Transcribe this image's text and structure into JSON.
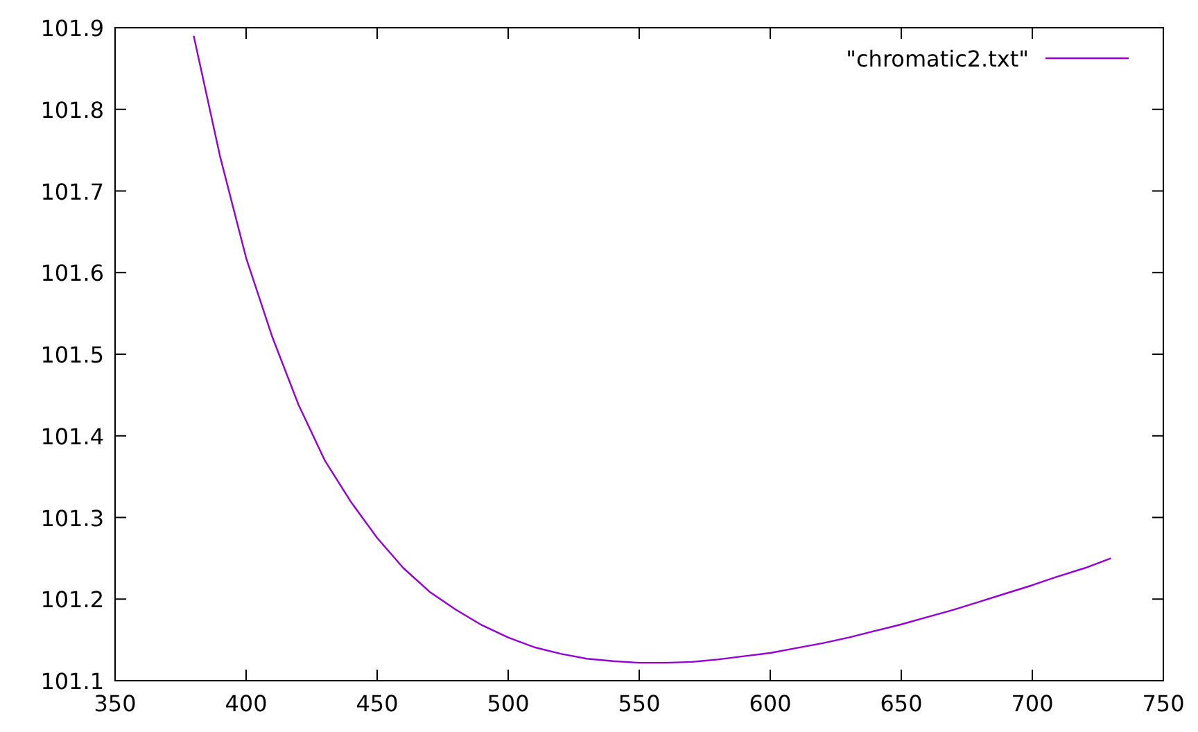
{
  "chart_data": {
    "type": "line",
    "legend": "top right",
    "marker": "none",
    "line_style": "solid",
    "grid": false,
    "x": [
      380,
      390,
      400,
      410,
      420,
      430,
      440,
      450,
      460,
      470,
      480,
      490,
      500,
      510,
      520,
      530,
      540,
      550,
      560,
      570,
      580,
      590,
      600,
      610,
      620,
      630,
      640,
      650,
      660,
      670,
      680,
      690,
      700,
      710,
      720,
      730
    ],
    "series": [
      {
        "name": "\"chromatic2.txt\"",
        "color": "#9400d3",
        "values": [
          101.89,
          101.743,
          101.618,
          101.521,
          101.438,
          101.37,
          101.319,
          101.275,
          101.238,
          101.209,
          101.187,
          101.168,
          101.153,
          101.141,
          101.133,
          101.127,
          101.124,
          101.122,
          101.122,
          101.123,
          101.126,
          101.13,
          101.134,
          101.14,
          101.146,
          101.153,
          101.161,
          101.169,
          101.178,
          101.187,
          101.197,
          101.207,
          101.217,
          101.228,
          101.238,
          101.25
        ]
      }
    ],
    "xlim": [
      350,
      750
    ],
    "xticks": [
      350,
      400,
      450,
      500,
      550,
      600,
      650,
      700,
      750
    ],
    "ylim": [
      101.1,
      101.9
    ],
    "yticks": [
      {
        "value": 101.1,
        "label": "101.1"
      },
      {
        "value": 101.2,
        "label": "101.2"
      },
      {
        "value": 101.3,
        "label": "101.3"
      },
      {
        "value": 101.4,
        "label": "101.4"
      },
      {
        "value": 101.5,
        "label": "101.5"
      },
      {
        "value": 101.6,
        "label": "101.6"
      },
      {
        "value": 101.7,
        "label": "101.7"
      },
      {
        "value": 101.8,
        "label": "101.8"
      },
      {
        "value": 101.9,
        "label": "101.9"
      }
    ]
  }
}
